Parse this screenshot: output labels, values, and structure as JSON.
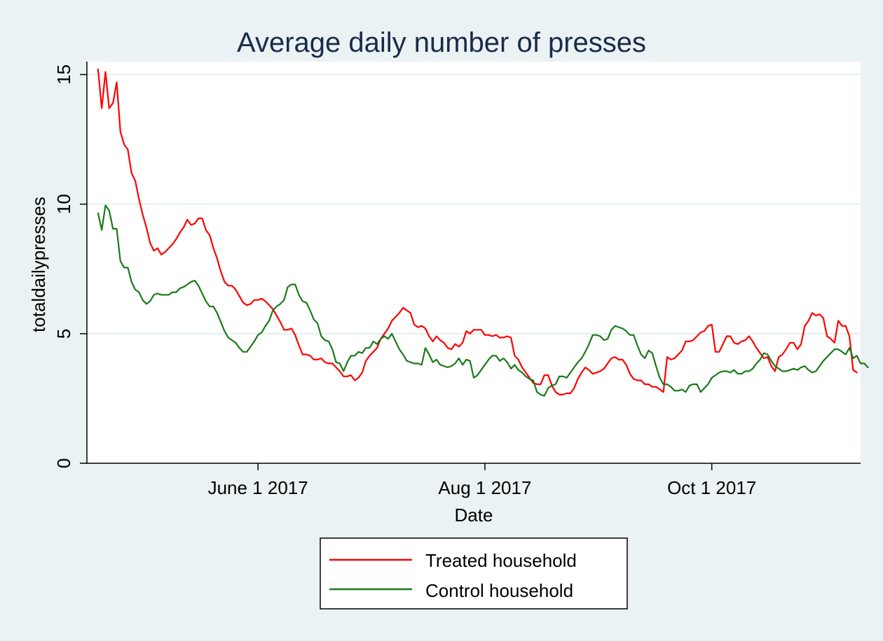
{
  "chart_data": {
    "type": "line",
    "title": "Average daily number of presses",
    "xlabel": "Date",
    "ylabel": "totaldailypresses",
    "xlim": [
      "2017-04-16",
      "2017-11-10"
    ],
    "ylim": [
      0,
      15.5
    ],
    "yticks": [
      0,
      5,
      10,
      15
    ],
    "xticks": [
      {
        "date": "2017-06-01",
        "label": "June 1 2017"
      },
      {
        "date": "2017-08-01",
        "label": "Aug 1 2017"
      },
      {
        "date": "2017-10-01",
        "label": "Oct 1 2017"
      }
    ],
    "grid": true,
    "legend_position": "bottom",
    "start_date": "2017-04-19",
    "series": [
      {
        "name": "Treated household",
        "color": "#ff0000",
        "values": [
          15.2,
          13.7,
          15.1,
          13.7,
          13.9,
          14.7,
          12.8,
          12.3,
          12.1,
          11.2,
          10.9,
          10.2,
          9.6,
          9.1,
          8.5,
          8.2,
          8.3,
          8.05,
          8.15,
          8.3,
          8.45,
          8.65,
          8.9,
          9.1,
          9.4,
          9.2,
          9.25,
          9.45,
          9.45,
          9.0,
          8.8,
          8.3,
          7.9,
          7.4,
          7.0,
          6.85,
          6.85,
          6.7,
          6.45,
          6.2,
          6.1,
          6.15,
          6.3,
          6.3,
          6.35,
          6.25,
          6.1,
          5.95,
          5.7,
          5.45,
          5.15,
          5.15,
          5.2,
          4.95,
          4.55,
          4.2,
          4.2,
          4.15,
          4.0,
          4.0,
          4.05,
          3.9,
          3.85,
          3.85,
          3.7,
          3.55,
          3.35,
          3.35,
          3.4,
          3.2,
          3.3,
          3.5,
          3.95,
          4.15,
          4.3,
          4.45,
          4.8,
          5.0,
          5.2,
          5.5,
          5.65,
          5.8,
          6.0,
          5.9,
          5.8,
          5.35,
          5.25,
          5.3,
          5.2,
          4.9,
          4.7,
          4.9,
          4.75,
          4.65,
          4.45,
          4.4,
          4.6,
          4.5,
          4.65,
          5.1,
          5.0,
          5.15,
          5.15,
          5.15,
          4.95,
          4.95,
          4.9,
          4.95,
          4.85,
          4.85,
          4.9,
          4.85,
          4.15,
          4.0,
          3.7,
          3.5,
          3.3,
          3.1,
          3.05,
          3.05,
          3.4,
          3.4,
          3.0,
          2.75,
          2.65,
          2.65,
          2.7,
          2.7,
          2.9,
          3.25,
          3.5,
          3.7,
          3.6,
          3.45,
          3.5,
          3.55,
          3.65,
          3.85,
          4.05,
          4.1,
          4.0,
          4.0,
          3.8,
          3.45,
          3.25,
          3.2,
          3.2,
          3.05,
          3.05,
          2.95,
          2.95,
          2.85,
          2.75,
          4.1,
          4.0,
          4.05,
          4.2,
          4.35,
          4.7,
          4.7,
          4.75,
          4.9,
          5.05,
          5.1,
          5.3,
          5.35,
          4.3,
          4.3,
          4.6,
          4.9,
          4.9,
          4.65,
          4.6,
          4.7,
          4.75,
          4.9,
          4.7,
          4.45,
          4.25,
          4.05,
          4.1,
          3.75,
          3.55,
          4.1,
          4.2,
          4.4,
          4.65,
          4.65,
          4.4,
          4.6,
          5.3,
          5.5,
          5.8,
          5.7,
          5.75,
          5.6,
          4.9,
          4.8,
          4.65,
          5.5,
          5.3,
          5.3,
          4.9,
          3.6,
          3.5
        ]
      },
      {
        "name": "Control household",
        "color": "#1a7a1a",
        "values": [
          9.65,
          9.0,
          9.95,
          9.75,
          9.05,
          9.05,
          7.8,
          7.55,
          7.55,
          7.0,
          6.7,
          6.6,
          6.3,
          6.15,
          6.25,
          6.5,
          6.55,
          6.5,
          6.5,
          6.5,
          6.6,
          6.6,
          6.75,
          6.8,
          6.9,
          7.0,
          7.05,
          6.85,
          6.55,
          6.25,
          6.05,
          6.05,
          5.8,
          5.45,
          5.1,
          4.85,
          4.75,
          4.65,
          4.45,
          4.3,
          4.3,
          4.5,
          4.7,
          4.95,
          5.05,
          5.3,
          5.5,
          5.9,
          6.05,
          6.15,
          6.3,
          6.8,
          6.9,
          6.9,
          6.5,
          6.25,
          6.2,
          5.9,
          5.55,
          5.4,
          4.9,
          4.75,
          4.7,
          4.4,
          3.9,
          3.85,
          3.55,
          3.9,
          4.15,
          4.15,
          4.3,
          4.25,
          4.45,
          4.45,
          4.7,
          4.6,
          4.8,
          4.9,
          4.8,
          5.0,
          4.7,
          4.4,
          4.2,
          3.95,
          3.9,
          3.85,
          3.85,
          3.8,
          4.45,
          4.2,
          3.9,
          4.0,
          3.8,
          3.75,
          3.7,
          3.75,
          3.85,
          4.05,
          3.8,
          4.0,
          3.95,
          3.3,
          3.4,
          3.6,
          3.8,
          4.0,
          4.15,
          4.15,
          3.95,
          4.05,
          3.9,
          3.65,
          3.8,
          3.6,
          3.5,
          3.35,
          3.25,
          3.2,
          2.75,
          2.65,
          2.6,
          2.9,
          3.0,
          3.05,
          3.35,
          3.35,
          3.3,
          3.5,
          3.7,
          3.9,
          4.05,
          4.3,
          4.6,
          4.95,
          4.95,
          4.9,
          4.75,
          4.8,
          5.15,
          5.3,
          5.25,
          5.2,
          5.1,
          4.95,
          4.95,
          4.55,
          4.2,
          4.05,
          4.35,
          4.25,
          3.75,
          3.3,
          3.05,
          3.05,
          2.95,
          2.8,
          2.8,
          2.85,
          2.75,
          3.0,
          3.05,
          3.05,
          2.75,
          2.9,
          3.05,
          3.3,
          3.4,
          3.5,
          3.55,
          3.55,
          3.5,
          3.6,
          3.45,
          3.45,
          3.55,
          3.55,
          3.65,
          3.85,
          4.0,
          4.25,
          4.2,
          3.95,
          3.75,
          3.65,
          3.55,
          3.55,
          3.6,
          3.65,
          3.6,
          3.7,
          3.75,
          3.6,
          3.5,
          3.55,
          3.75,
          3.95,
          4.1,
          4.25,
          4.4,
          4.4,
          4.3,
          4.2,
          4.45,
          4.05,
          4.15,
          3.85,
          3.85,
          3.7
        ]
      }
    ]
  }
}
